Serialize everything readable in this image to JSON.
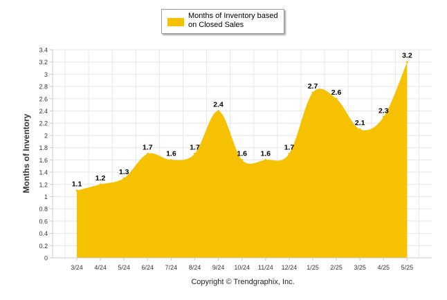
{
  "legend": {
    "label": "Months of Inventory based on Closed Sales"
  },
  "credit": "Copyright © Trendgraphix, Inc.",
  "colors": {
    "area": "#f5c100",
    "grid": "#e6e6e6",
    "axis": "#c8c8c8",
    "text": "#333333"
  },
  "chart_data": {
    "type": "area",
    "title": "",
    "xlabel": "",
    "ylabel": "Months of Inventory",
    "categories": [
      "3/24",
      "4/24",
      "5/24",
      "6/24",
      "7/24",
      "8/24",
      "9/24",
      "10/24",
      "11/24",
      "12/24",
      "1/25",
      "2/25",
      "3/25",
      "4/25",
      "5/25"
    ],
    "series": [
      {
        "name": "Months of Inventory based on Closed Sales",
        "values": [
          1.1,
          1.2,
          1.3,
          1.7,
          1.6,
          1.7,
          2.4,
          1.6,
          1.6,
          1.7,
          2.7,
          2.6,
          2.1,
          2.3,
          3.2
        ]
      }
    ],
    "ylim": [
      0,
      3.4
    ],
    "yticks": [
      "0",
      "0.2",
      "0.4",
      "0.6",
      "0.8",
      "1",
      "1.2",
      "1.4",
      "1.6",
      "1.8",
      "2",
      "2.2",
      "2.4",
      "2.6",
      "2.8",
      "3",
      "3.2",
      "3.4"
    ],
    "data_labels": [
      "1.1",
      "1.2",
      "1.3",
      "1.7",
      "1.6",
      "1.7",
      "2.4",
      "1.6",
      "1.6",
      "1.7",
      "2.7",
      "2.6",
      "2.1",
      "2.3",
      "3.2"
    ],
    "grid": true,
    "legend_position": "top-center"
  }
}
